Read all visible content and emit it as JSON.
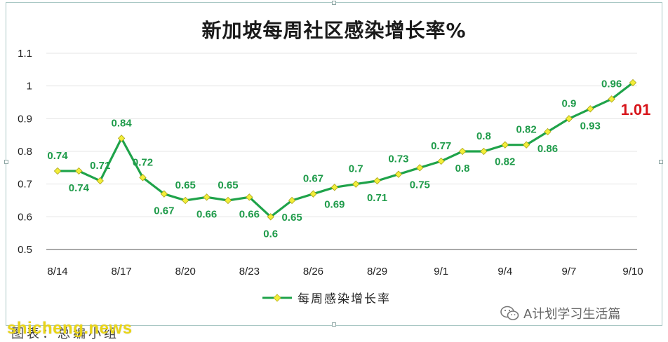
{
  "chart_data": {
    "type": "line",
    "title": "新加坡每周社区感染增长率%",
    "categories": [
      "8/14",
      "8/15",
      "8/16",
      "8/17",
      "8/18",
      "8/19",
      "8/20",
      "8/21",
      "8/22",
      "8/23",
      "8/24",
      "8/25",
      "8/26",
      "8/27",
      "8/28",
      "8/29",
      "8/30",
      "8/31",
      "9/1",
      "9/2",
      "9/3",
      "9/4",
      "9/5",
      "9/6",
      "9/7",
      "9/8",
      "9/9",
      "9/10"
    ],
    "x_tick_labels": [
      "8/14",
      "8/17",
      "8/20",
      "8/23",
      "8/26",
      "8/29",
      "9/1",
      "9/4",
      "9/7",
      "9/10"
    ],
    "y_tick_labels": [
      "0.5",
      "0.6",
      "0.7",
      "0.8",
      "0.9",
      "1",
      "1.1"
    ],
    "ylim": [
      0.5,
      1.1
    ],
    "grid": true,
    "legend_position": "bottom",
    "series": [
      {
        "name": "每周感染增长率",
        "color": "#1fa34a",
        "marker_color": "#f2ee3a",
        "values": [
          0.74,
          0.74,
          0.71,
          0.84,
          0.72,
          0.67,
          0.65,
          0.66,
          0.65,
          0.66,
          0.6,
          0.65,
          0.67,
          0.69,
          0.7,
          0.71,
          0.73,
          0.75,
          0.77,
          0.8,
          0.8,
          0.82,
          0.82,
          0.86,
          0.9,
          0.93,
          0.96,
          1.01
        ],
        "data_labels": [
          "0.74",
          "0.74",
          "0.71",
          "0.84",
          "0.72",
          "0.67",
          "0.65",
          "0.66",
          "0.65",
          "0.66",
          "0.6",
          "0.65",
          "0.67",
          "0.69",
          "0.7",
          "0.71",
          "0.73",
          "0.75",
          "0.77",
          "0.8",
          "0.8",
          "0.82",
          "0.82",
          "0.86",
          "0.9",
          "0.93",
          "0.96",
          "1.01"
        ],
        "highlight_color": "#d7141a"
      }
    ]
  },
  "wechat_account": "A计划学习生活篇",
  "watermark": "shicheng.news",
  "caption": "图表：总编小组"
}
